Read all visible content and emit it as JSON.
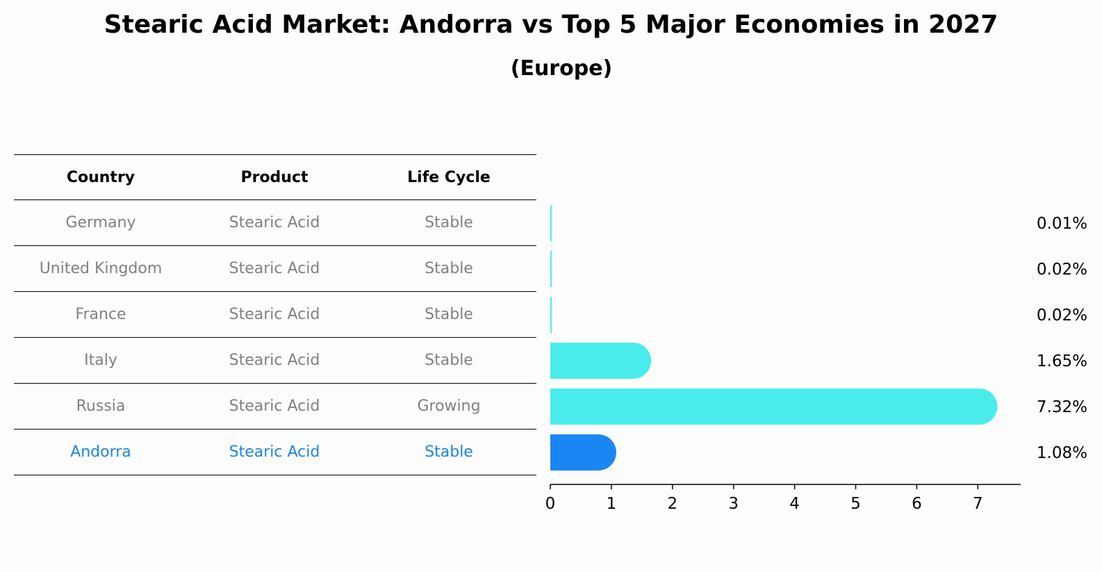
{
  "title": "Stearic Acid Market: Andorra vs Top 5 Major Economies in 2027",
  "subtitle": "(Europe)",
  "table": {
    "headers": [
      "Country",
      "Product",
      "Life Cycle"
    ],
    "rows": [
      {
        "country": "Germany",
        "product": "Stearic Acid",
        "life_cycle": "Stable"
      },
      {
        "country": "United Kingdom",
        "product": "Stearic Acid",
        "life_cycle": "Stable"
      },
      {
        "country": "France",
        "product": "Stearic Acid",
        "life_cycle": "Stable"
      },
      {
        "country": "Italy",
        "product": "Stearic Acid",
        "life_cycle": "Stable"
      },
      {
        "country": "Russia",
        "product": "Stearic Acid",
        "life_cycle": "Growing"
      },
      {
        "country": "Andorra",
        "product": "Stearic Acid",
        "life_cycle": "Stable"
      }
    ]
  },
  "colors": {
    "bar": "#4aeceb",
    "highlight_bar": "#1a86f4",
    "highlight_text": "#1a86e2",
    "muted_text": "#808080"
  },
  "chart_data": {
    "type": "bar",
    "orientation": "horizontal",
    "categories": [
      "Germany",
      "United Kingdom",
      "France",
      "Italy",
      "Russia",
      "Andorra"
    ],
    "values": [
      0.01,
      0.02,
      0.02,
      1.65,
      7.32,
      1.08
    ],
    "data_labels": [
      "0.01%",
      "0.02%",
      "0.02%",
      "1.65%",
      "7.32%",
      "1.08%"
    ],
    "highlight": "Andorra",
    "xlim": [
      0,
      7.7
    ],
    "xticks": [
      0,
      1,
      2,
      3,
      4,
      5,
      6,
      7
    ],
    "grid": false
  }
}
